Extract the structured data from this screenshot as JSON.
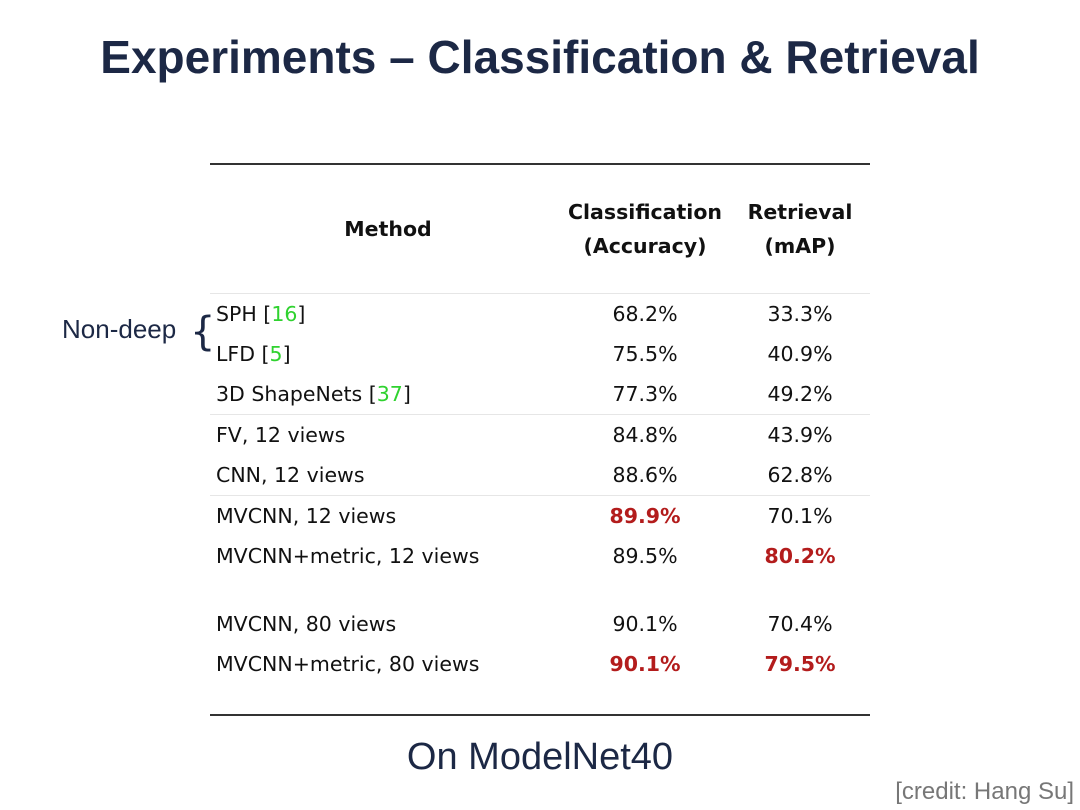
{
  "title": "Experiments – Classification & Retrieval",
  "group_label": "Non-deep",
  "group_brace": "{",
  "table": {
    "headers": {
      "method": "Method",
      "classification_line1": "Classification",
      "classification_line2": "(Accuracy)",
      "retrieval_line1": "Retrieval",
      "retrieval_line2": "(mAP)"
    },
    "rows": [
      {
        "method": "SPH [",
        "cite": "16",
        "method_end": "]",
        "classification": "68.2%",
        "retrieval": "33.3%"
      },
      {
        "method": "LFD [",
        "cite": "5",
        "method_end": "]",
        "classification": "75.5%",
        "retrieval": "40.9%"
      },
      {
        "method": "3D ShapeNets [",
        "cite": "37",
        "method_end": "]",
        "classification": "77.3%",
        "retrieval": "49.2%"
      },
      {
        "method": "FV, 12 views",
        "classification": "84.8%",
        "retrieval": "43.9%"
      },
      {
        "method": "CNN, 12 views",
        "classification": "88.6%",
        "retrieval": "62.8%"
      },
      {
        "method": "MVCNN, 12 views",
        "classification": "89.9%",
        "retrieval": "70.1%",
        "best": "classification"
      },
      {
        "method": "MVCNN+metric, 12 views",
        "classification": "89.5%",
        "retrieval": "80.2%",
        "best": "retrieval"
      },
      {
        "method": "MVCNN, 80 views",
        "classification": "90.1%",
        "retrieval": "70.4%"
      },
      {
        "method": "MVCNN+metric, 80 views",
        "classification": "90.1%",
        "retrieval": "79.5%",
        "best": "both"
      }
    ]
  },
  "caption": "On ModelNet40",
  "credit": "[credit: Hang Su]",
  "colors": {
    "title": "#1c2845",
    "citation": "#2fd22f",
    "best": "#b31c1c"
  }
}
